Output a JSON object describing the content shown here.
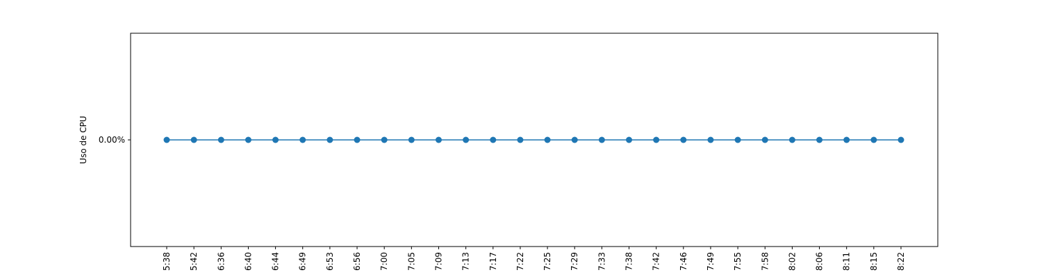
{
  "chart_data": {
    "type": "line",
    "title": "",
    "xlabel": "",
    "ylabel": "Uso de CPU",
    "x": [
      "5:38",
      "5:42",
      "6:36",
      "6:40",
      "6:44",
      "6:49",
      "6:53",
      "6:56",
      "7:00",
      "7:05",
      "7:09",
      "7:13",
      "7:17",
      "7:22",
      "7:25",
      "7:29",
      "7:33",
      "7:38",
      "7:42",
      "7:46",
      "7:49",
      "7:55",
      "7:58",
      "8:02",
      "8:06",
      "8:11",
      "8:15",
      "8:22"
    ],
    "series": [
      {
        "name": "",
        "values": [
          0,
          0,
          0,
          0,
          0,
          0,
          0,
          0,
          0,
          0,
          0,
          0,
          0,
          0,
          0,
          0,
          0,
          0,
          0,
          0,
          0,
          0,
          0,
          0,
          0,
          0,
          0,
          0
        ]
      }
    ],
    "yticks": [
      0
    ],
    "ytick_labels": [
      "0.00%"
    ],
    "ylim": [
      -0.04,
      0.04
    ],
    "grid": false,
    "legend": "none",
    "colors": {
      "line": "#1f77b4",
      "marker": "#1f77b4",
      "axes": "#000000"
    }
  }
}
